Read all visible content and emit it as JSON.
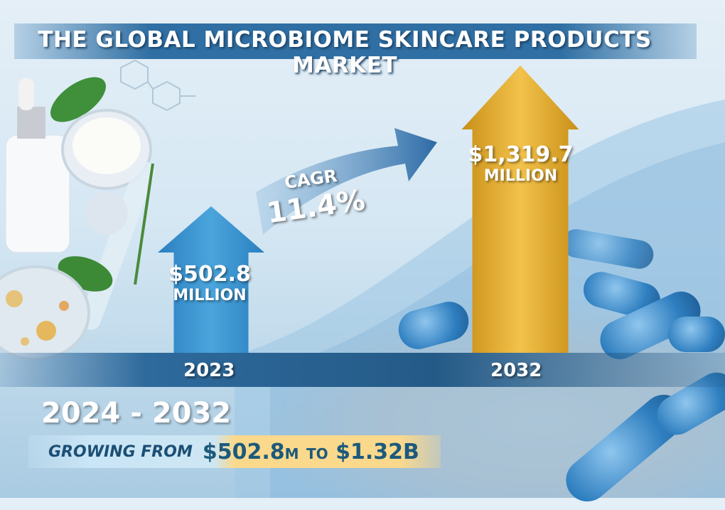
{
  "title": "THE GLOBAL MICROBIOME SKINCARE PRODUCTS MARKET",
  "cagr": {
    "label": "CAGR",
    "value": "11.4%"
  },
  "period": "2024 - 2032",
  "growth": {
    "prefix": "GROWING FROM",
    "start": "$502.8",
    "start_unit": "M",
    "to": "TO",
    "end": "$1.32B"
  },
  "colors": {
    "bar_2023": "#3a93cf",
    "bar_2032": "#e0a92a",
    "banner": "#2f6fa3",
    "cagr_arrow": "#2c6aa5"
  },
  "chart_data": {
    "type": "bar",
    "categories": [
      "2023",
      "2032"
    ],
    "values": [
      502.8,
      1319.7
    ],
    "unit": "USD million",
    "data_labels": [
      {
        "amount": "$502.8",
        "unit": "MILLION"
      },
      {
        "amount": "$1,319.7",
        "unit": "MILLION"
      }
    ]
  }
}
